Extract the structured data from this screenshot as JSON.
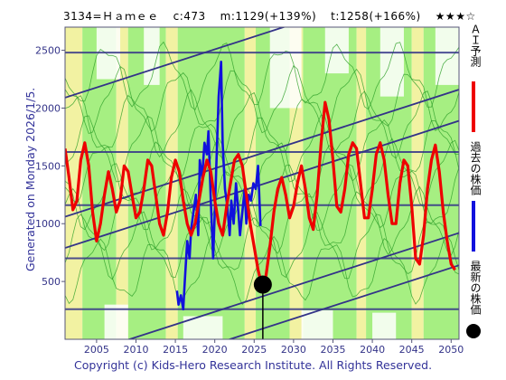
{
  "header": {
    "code_name": "3134=Ｈａｍｅｅ",
    "current": "c:473",
    "max": "m:1129(+139%)",
    "target": "t:1258(+166%)",
    "rating": "★★★☆"
  },
  "side_label": "Generated on Monday 2026/1/5.",
  "copyright": "Copyright (c) Kids-Hero Research Institute. All Rights Reserved.",
  "legend": {
    "ai_forecast": "ＡＩ予測",
    "past_price": "過去の株価",
    "latest_price": "最新の株価"
  },
  "colors": {
    "ai_forecast": "#ee0000",
    "past_price": "#1111dd",
    "latest_price": "#000000",
    "band_green": "#a6ef82",
    "band_yellow": "#f2f2a2",
    "channel": "#333388",
    "axis_text": "#333388"
  },
  "chart_data": {
    "type": "line",
    "x_ticks": [
      2005,
      2010,
      2015,
      2020,
      2025,
      2030,
      2035,
      2040,
      2045,
      2050
    ],
    "y_ticks": [
      500,
      1000,
      1500,
      2000,
      2500
    ],
    "xlim": [
      2001,
      2051
    ],
    "ylim": [
      0,
      2700
    ],
    "horizontal_levels": [
      260,
      700,
      1160,
      1620,
      2480
    ],
    "latest_point": {
      "x": 2026.1,
      "y": 473
    },
    "series": [
      {
        "key": "past",
        "x": [
          2015.2,
          2015.4,
          2015.7,
          2016.0,
          2016.2,
          2016.5,
          2016.8,
          2017.0,
          2017.3,
          2017.6,
          2017.9,
          2018.1,
          2018.4,
          2018.7,
          2019.0,
          2019.2,
          2019.5,
          2019.8,
          2020.0,
          2020.2,
          2020.5,
          2020.8,
          2021.0,
          2021.3,
          2021.6,
          2021.9,
          2022.1,
          2022.4,
          2022.7,
          2023.0,
          2023.2,
          2023.5,
          2023.8,
          2024.0,
          2024.3,
          2024.6,
          2024.9,
          2025.2,
          2025.5,
          2025.8
        ],
        "y": [
          420,
          300,
          380,
          260,
          500,
          850,
          700,
          950,
          1100,
          1250,
          900,
          1550,
          1400,
          1700,
          1600,
          1800,
          1200,
          700,
          1100,
          1500,
          2100,
          2400,
          1700,
          1300,
          1150,
          900,
          1200,
          1000,
          1350,
          1100,
          900,
          1100,
          1300,
          1000,
          1250,
          1200,
          1350,
          1300,
          1500,
          980
        ]
      },
      {
        "key": "forecast",
        "x": [
          2001.0,
          2001.5,
          2002.0,
          2002.5,
          2003.0,
          2003.5,
          2004.0,
          2004.5,
          2005.0,
          2005.5,
          2006.0,
          2006.5,
          2007.0,
          2007.5,
          2008.0,
          2008.5,
          2009.0,
          2009.5,
          2010.0,
          2010.5,
          2011.0,
          2011.5,
          2012.0,
          2012.5,
          2013.0,
          2013.5,
          2014.0,
          2014.5,
          2015.0,
          2015.5,
          2016.0,
          2016.5,
          2017.0,
          2017.5,
          2018.0,
          2018.5,
          2019.0,
          2019.5,
          2020.0,
          2020.5,
          2021.0,
          2021.5,
          2022.0,
          2022.5,
          2023.0,
          2023.5,
          2024.0,
          2024.5,
          2025.0,
          2025.5,
          2026.0,
          2026.5,
          2027.0,
          2027.5,
          2028.0,
          2028.5,
          2029.0,
          2029.5,
          2030.0,
          2030.5,
          2031.0,
          2031.5,
          2032.0,
          2032.5,
          2033.0,
          2033.5,
          2034.0,
          2034.5,
          2035.0,
          2035.5,
          2036.0,
          2036.5,
          2037.0,
          2037.5,
          2038.0,
          2038.5,
          2039.0,
          2039.5,
          2040.0,
          2040.5,
          2041.0,
          2041.5,
          2042.0,
          2042.5,
          2043.0,
          2043.5,
          2044.0,
          2044.5,
          2045.0,
          2045.5,
          2046.0,
          2046.5,
          2047.0,
          2047.5,
          2048.0,
          2048.5,
          2049.0,
          2049.5,
          2050.0,
          2050.5
        ],
        "y": [
          1650,
          1400,
          1120,
          1200,
          1550,
          1700,
          1500,
          1100,
          850,
          1000,
          1250,
          1450,
          1300,
          1100,
          1200,
          1500,
          1450,
          1250,
          1050,
          1100,
          1300,
          1550,
          1500,
          1250,
          1000,
          900,
          1100,
          1400,
          1550,
          1450,
          1200,
          1000,
          900,
          1000,
          1200,
          1400,
          1550,
          1450,
          1200,
          1000,
          900,
          1150,
          1350,
          1550,
          1600,
          1500,
          1250,
          1000,
          800,
          600,
          460,
          550,
          800,
          1100,
          1300,
          1400,
          1250,
          1050,
          1150,
          1350,
          1500,
          1300,
          1050,
          950,
          1250,
          1700,
          2050,
          1900,
          1550,
          1150,
          1100,
          1300,
          1600,
          1700,
          1650,
          1350,
          1050,
          1050,
          1300,
          1600,
          1700,
          1550,
          1250,
          1000,
          1000,
          1350,
          1550,
          1500,
          1150,
          700,
          650,
          900,
          1300,
          1550,
          1680,
          1450,
          1100,
          850,
          650,
          600
        ]
      }
    ]
  }
}
